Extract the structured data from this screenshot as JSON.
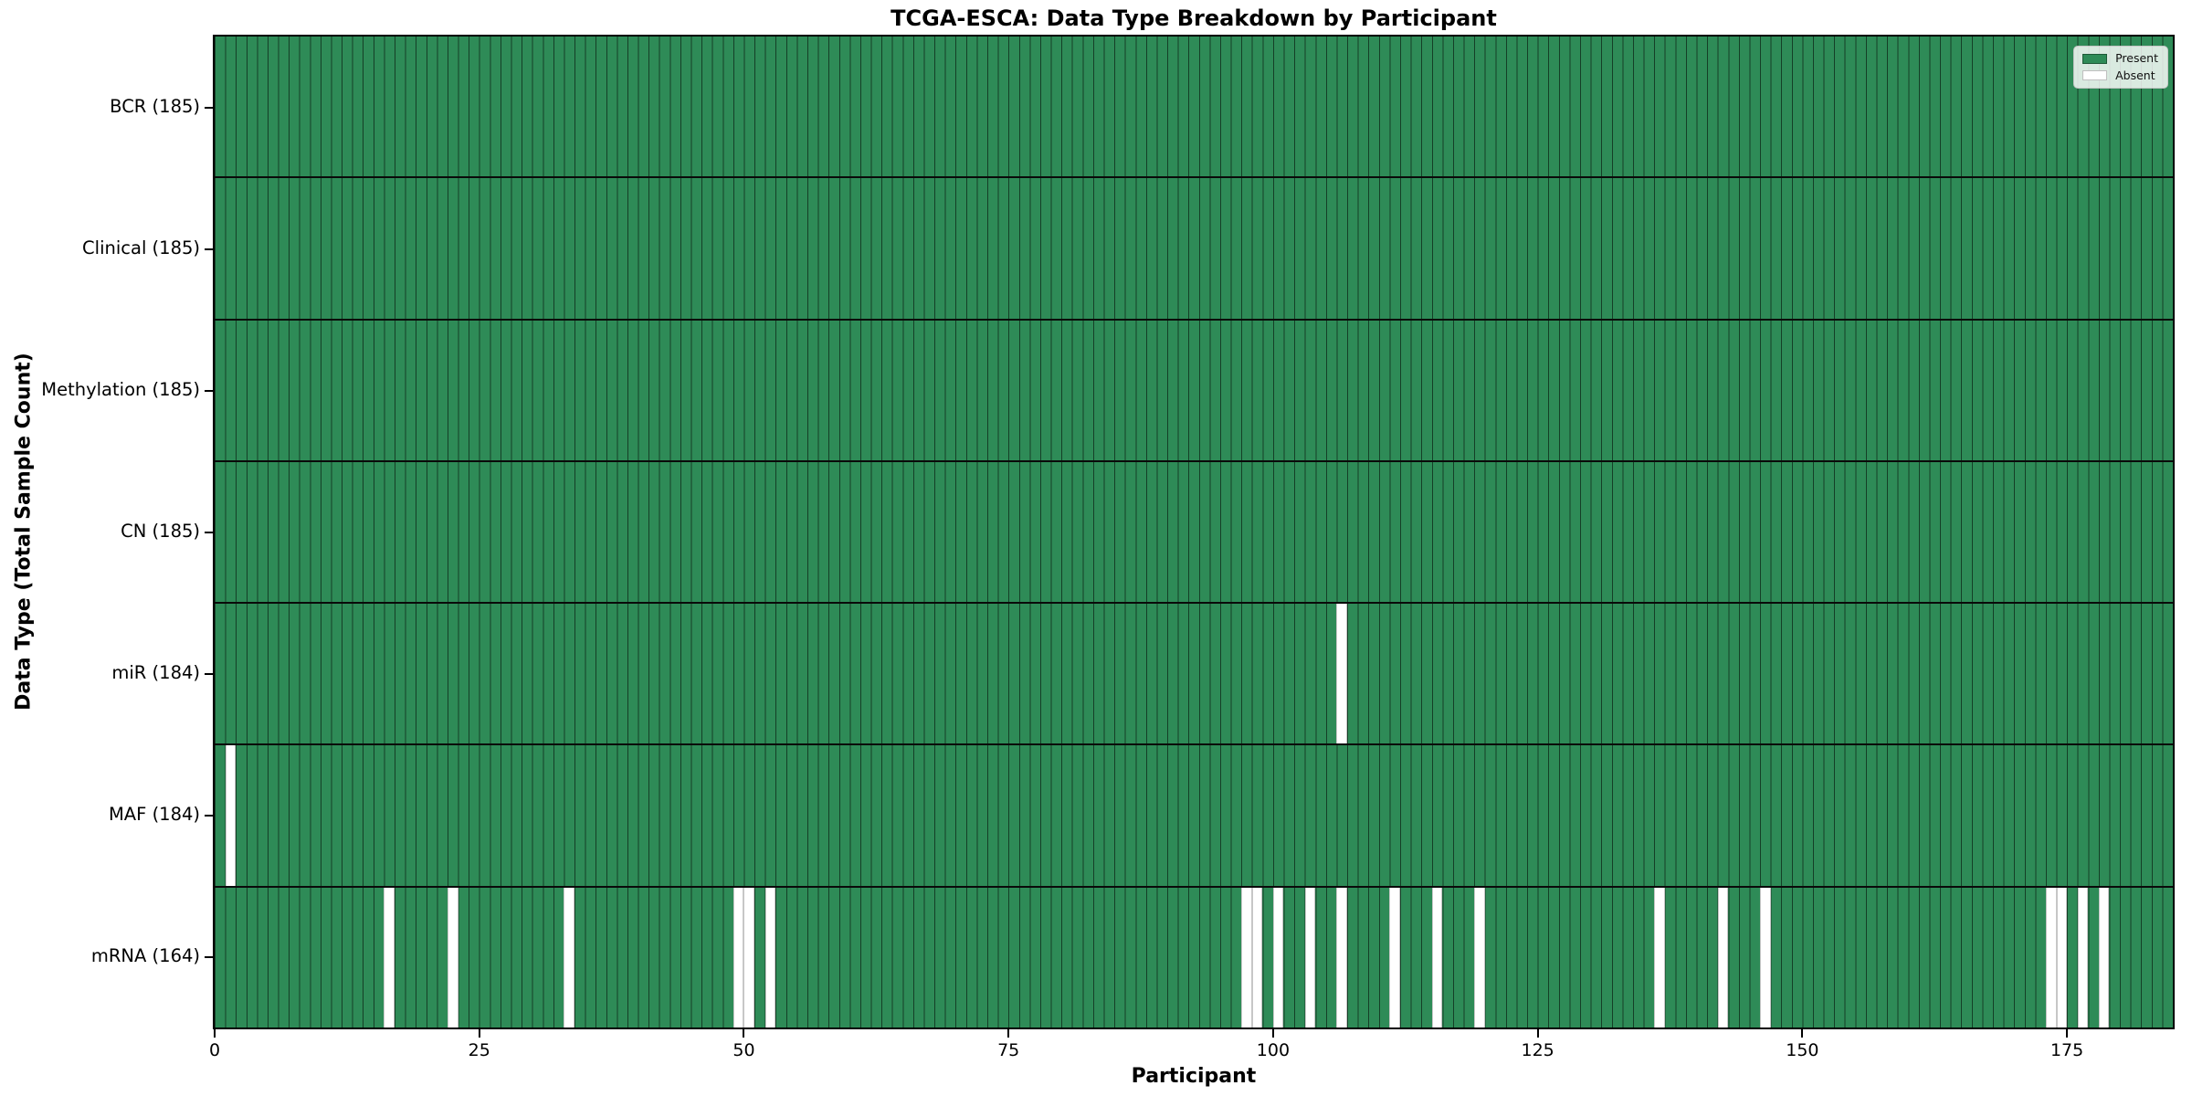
{
  "title": "TCGA-ESCA: Data Type Breakdown by Participant",
  "xlabel": "Participant",
  "ylabel": "Data Type (Total Sample Count)",
  "legend": {
    "present_label": "Present",
    "absent_label": "Absent"
  },
  "colors": {
    "present": "#2e8b57",
    "absent": "#ffffff",
    "cell_edge": "rgba(0,0,0,0.55)",
    "row_separator": "#0a0a0a",
    "plot_border": "#000000"
  },
  "chart_data": {
    "type": "heatmap",
    "title": "TCGA-ESCA: Data Type Breakdown by Participant",
    "xlabel": "Participant",
    "ylabel": "Data Type (Total Sample Count)",
    "x_range": [
      0,
      185
    ],
    "n_participants": 185,
    "x_ticks": [
      0,
      25,
      50,
      75,
      100,
      125,
      150,
      175
    ],
    "grid": "cell-edges",
    "legend_entries": [
      "Present",
      "Absent"
    ],
    "legend_position": "upper right",
    "rows": [
      {
        "label": "BCR (185)",
        "data_type": "BCR",
        "total": 185,
        "absent_participants": []
      },
      {
        "label": "Clinical (185)",
        "data_type": "Clinical",
        "total": 185,
        "absent_participants": []
      },
      {
        "label": "Methylation (185)",
        "data_type": "Methylation",
        "total": 185,
        "absent_participants": []
      },
      {
        "label": "CN (185)",
        "data_type": "CN",
        "total": 185,
        "absent_participants": []
      },
      {
        "label": "miR (184)",
        "data_type": "miR",
        "total": 184,
        "absent_participants": [
          106
        ]
      },
      {
        "label": "MAF (184)",
        "data_type": "MAF",
        "total": 184,
        "absent_participants": [
          1
        ]
      },
      {
        "label": "mRNA (164)",
        "data_type": "mRNA",
        "total": 164,
        "absent_participants": [
          16,
          22,
          33,
          49,
          50,
          52,
          97,
          98,
          100,
          103,
          106,
          111,
          115,
          119,
          136,
          142,
          146,
          173,
          174,
          176,
          178
        ]
      }
    ]
  }
}
